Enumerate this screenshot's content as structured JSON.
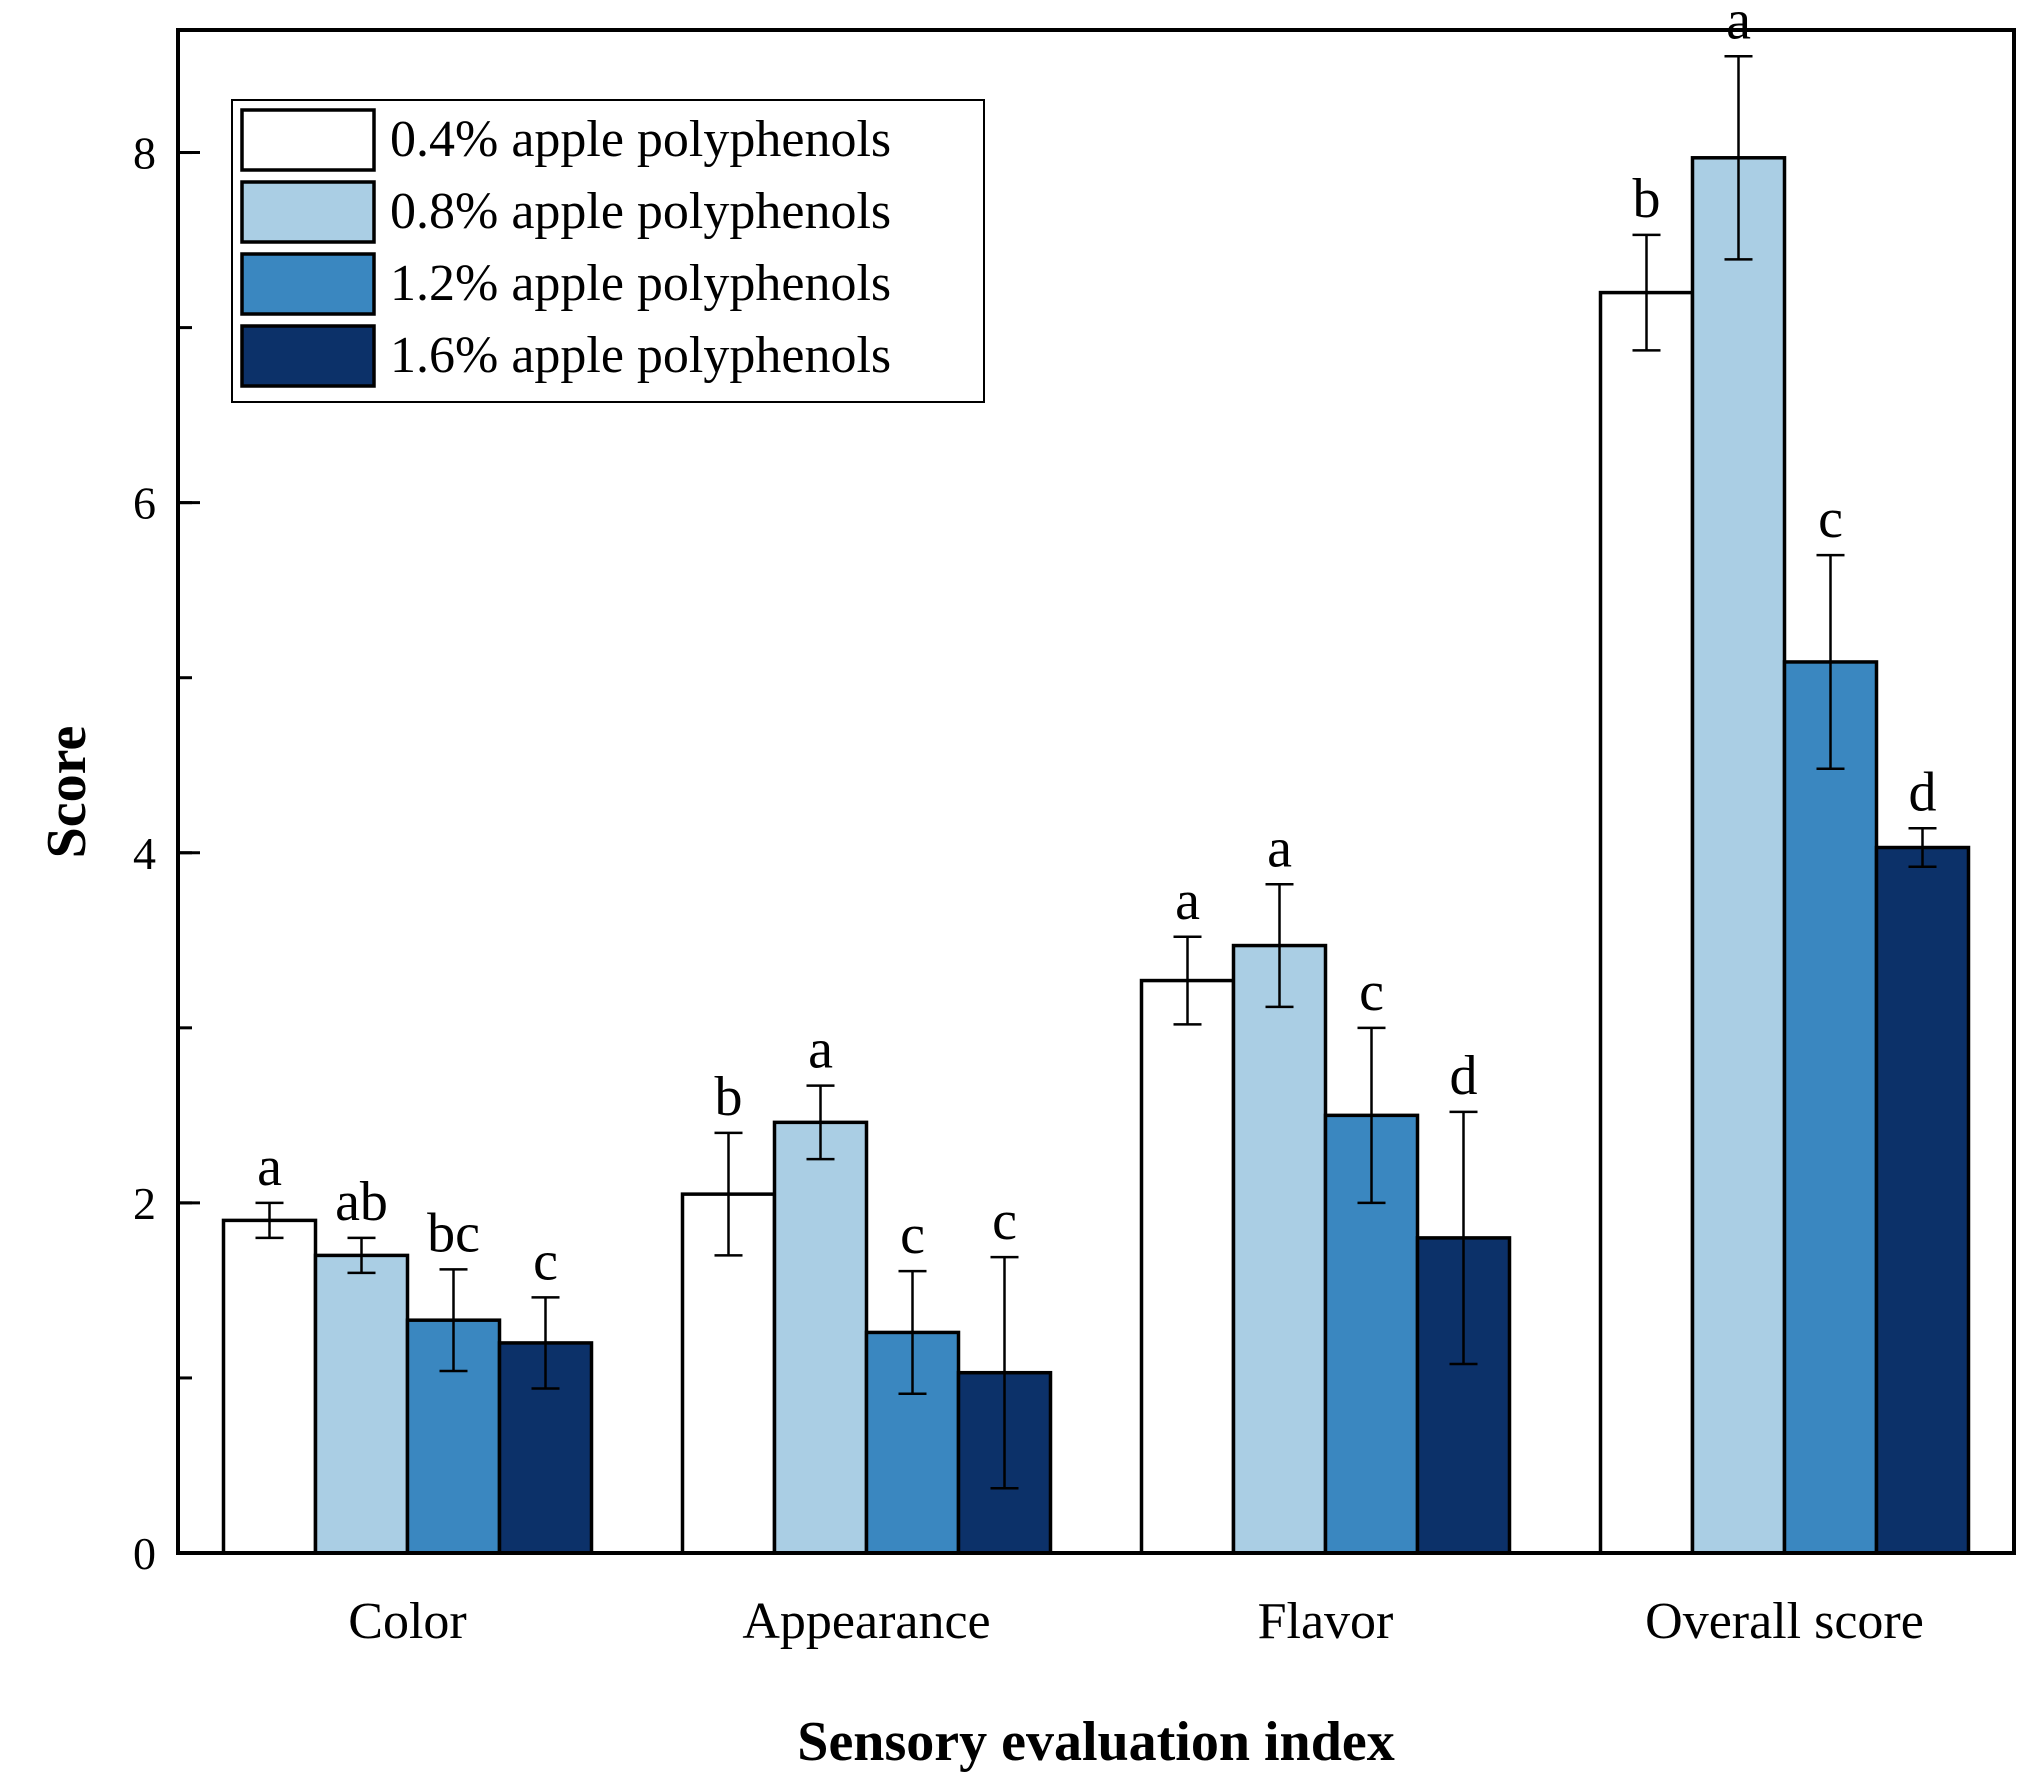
{
  "chart_data": {
    "type": "bar",
    "title": "",
    "xlabel": "Sensory evaluation index",
    "ylabel": "Score",
    "ylim": [
      0,
      8.7
    ],
    "yticks": [
      0,
      2,
      4,
      6,
      8
    ],
    "categories": [
      "Color",
      "Appearance",
      "Flavor",
      "Overall score"
    ],
    "legend_position": "top-left",
    "grid": false,
    "series": [
      {
        "name": "0.4% apple polyphenols",
        "color": "#ffffff",
        "values": [
          1.9,
          2.05,
          3.27,
          7.2
        ],
        "errors": [
          0.1,
          0.35,
          0.25,
          0.33
        ],
        "labels": [
          "a",
          "b",
          "a",
          "b"
        ]
      },
      {
        "name": "0.8% apple polyphenols",
        "color": "#aacee4",
        "values": [
          1.7,
          2.46,
          3.47,
          7.97
        ],
        "errors": [
          0.1,
          0.21,
          0.35,
          0.58
        ],
        "labels": [
          "ab",
          "a",
          "a",
          "a"
        ]
      },
      {
        "name": "1.2% apple polyphenols",
        "color": "#3a87c0",
        "values": [
          1.33,
          1.26,
          2.5,
          5.09
        ],
        "errors": [
          0.29,
          0.35,
          0.5,
          0.61
        ],
        "labels": [
          "bc",
          "c",
          "c",
          "c"
        ]
      },
      {
        "name": "1.6% apple polyphenols",
        "color": "#0c3169",
        "values": [
          1.2,
          1.03,
          1.8,
          4.03
        ],
        "errors": [
          0.26,
          0.66,
          0.72,
          0.11
        ],
        "labels": [
          "c",
          "c",
          "d",
          "d"
        ]
      }
    ]
  }
}
